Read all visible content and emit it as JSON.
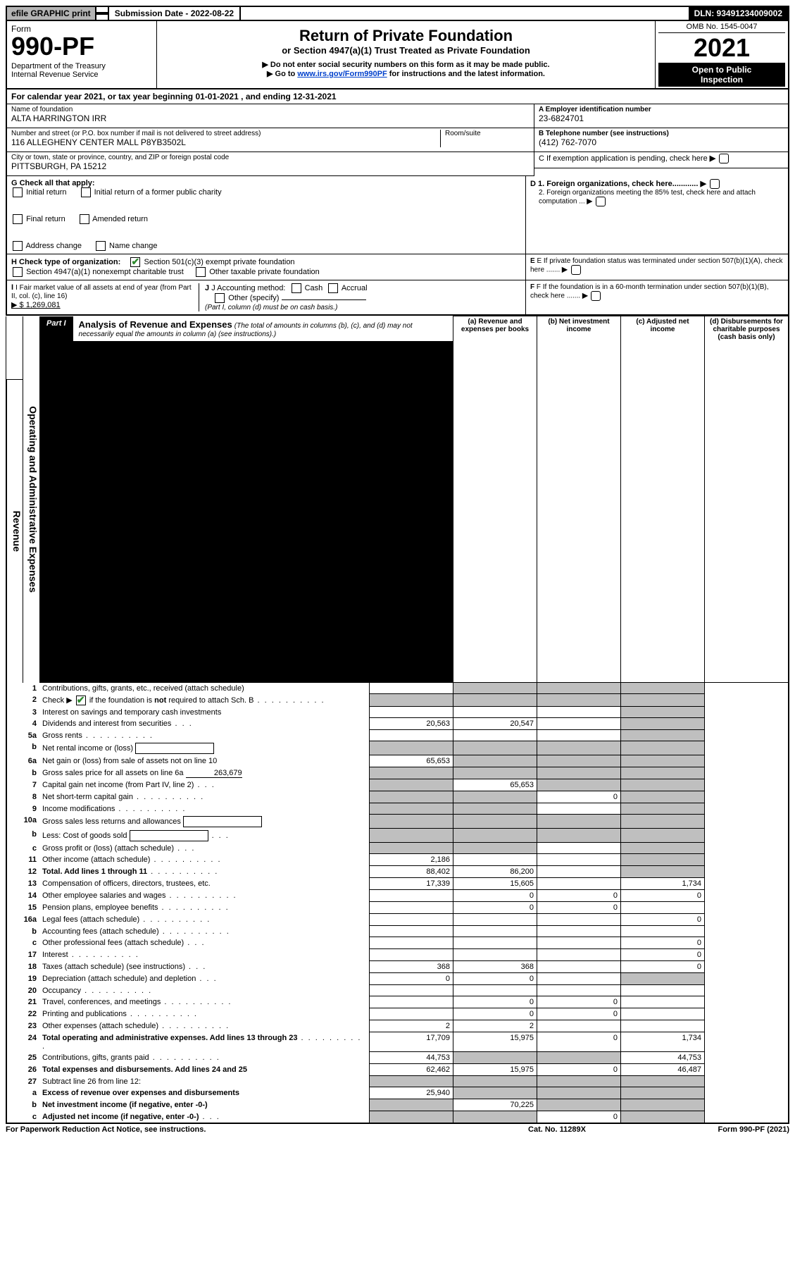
{
  "topbar": {
    "efile": "efile GRAPHIC print",
    "submission_label": "Submission Date - 2022-08-22",
    "dln": "DLN: 93491234009002"
  },
  "header": {
    "form_word": "Form",
    "form_number": "990-PF",
    "dept1": "Department of the Treasury",
    "dept2": "Internal Revenue Service",
    "title": "Return of Private Foundation",
    "subtitle": "or Section 4947(a)(1) Trust Treated as Private Foundation",
    "note1": "▶ Do not enter social security numbers on this form as it may be made public.",
    "note2_prefix": "▶ Go to ",
    "note2_link": "www.irs.gov/Form990PF",
    "note2_suffix": " for instructions and the latest information.",
    "omb": "OMB No. 1545-0047",
    "year": "2021",
    "open1": "Open to Public",
    "open2": "Inspection"
  },
  "calyear": "For calendar year 2021, or tax year beginning 01-01-2021            , and ending 12-31-2021",
  "name_block": {
    "name_lbl": "Name of foundation",
    "name_val": "ALTA HARRINGTON IRR",
    "addr_lbl": "Number and street (or P.O. box number if mail is not delivered to street address)",
    "addr_val": "116 ALLEGHENY CENTER MALL P8YB3502L",
    "room_lbl": "Room/suite",
    "city_lbl": "City or town, state or province, country, and ZIP or foreign postal code",
    "city_val": "PITTSBURGH, PA  15212",
    "a_lbl": "A Employer identification number",
    "a_val": "23-6824701",
    "b_lbl": "B Telephone number (see instructions)",
    "b_val": "(412) 762-7070",
    "c_lbl": "C If exemption application is pending, check here",
    "d1_lbl": "D 1. Foreign organizations, check here............",
    "d2_lbl": "2. Foreign organizations meeting the 85% test, check here and attach computation ...",
    "e_lbl": "E  If private foundation status was terminated under section 507(b)(1)(A), check here .......",
    "f_lbl": "F  If the foundation is in a 60-month termination under section 507(b)(1)(B), check here .......",
    "g_lbl": "G Check all that apply:",
    "g_opts": [
      "Initial return",
      "Final return",
      "Address change",
      "Initial return of a former public charity",
      "Amended return",
      "Name change"
    ],
    "h_lbl": "H Check type of organization:",
    "h1": "Section 501(c)(3) exempt private foundation",
    "h2": "Section 4947(a)(1) nonexempt charitable trust",
    "h3": "Other taxable private foundation",
    "i_lbl": "I Fair market value of all assets at end of year (from Part II, col. (c), line 16)",
    "i_val": "▶ $  1,269,081",
    "j_lbl": "J Accounting method:",
    "j_cash": "Cash",
    "j_accrual": "Accrual",
    "j_other": "Other (specify)",
    "j_note": "(Part I, column (d) must be on cash basis.)"
  },
  "part1": {
    "tag": "Part I",
    "title": "Analysis of Revenue and Expenses",
    "title_note": "(The total of amounts in columns (b), (c), and (d) may not necessarily equal the amounts in column (a) (see instructions).)",
    "col_a": "(a)    Revenue and expenses per books",
    "col_b": "(b)    Net investment income",
    "col_c": "(c)    Adjusted net income",
    "col_d": "(d)    Disbursements for charitable purposes (cash basis only)",
    "side_rev": "Revenue",
    "side_exp": "Operating and Administrative Expenses"
  },
  "rows": [
    {
      "n": "1",
      "desc": "Contributions, gifts, grants, etc., received (attach schedule)",
      "a": "",
      "b": "shade",
      "c": "shade",
      "d": "shade"
    },
    {
      "n": "2",
      "desc": "Check ▶ ☑ if the foundation is not required to attach Sch. B",
      "dots": true,
      "a": "shade",
      "b": "shade",
      "c": "shade",
      "d": "shade",
      "b_not": "",
      "check": true
    },
    {
      "n": "3",
      "desc": "Interest on savings and temporary cash investments",
      "a": "",
      "b": "",
      "c": "",
      "d": "shade"
    },
    {
      "n": "4",
      "desc": "Dividends and interest from securities",
      "dots": "sm",
      "a": "20,563",
      "b": "20,547",
      "c": "",
      "d": "shade"
    },
    {
      "n": "5a",
      "desc": "Gross rents",
      "dots": true,
      "a": "",
      "b": "",
      "c": "",
      "d": "shade"
    },
    {
      "n": "b",
      "desc": "Net rental income or (loss)",
      "inline_box": true,
      "a": "shade",
      "b": "shade",
      "c": "shade",
      "d": "shade"
    },
    {
      "n": "6a",
      "desc": "Net gain or (loss) from sale of assets not on line 10",
      "a": "65,653",
      "b": "shade",
      "c": "shade",
      "d": "shade"
    },
    {
      "n": "b",
      "desc": "Gross sales price for all assets on line 6a",
      "inline_val": "263,679",
      "a": "shade",
      "b": "shade",
      "c": "shade",
      "d": "shade"
    },
    {
      "n": "7",
      "desc": "Capital gain net income (from Part IV, line 2)",
      "dots": "sm",
      "a": "shade",
      "b": "65,653",
      "c": "shade",
      "d": "shade"
    },
    {
      "n": "8",
      "desc": "Net short-term capital gain",
      "dots": true,
      "a": "shade",
      "b": "shade",
      "c": "0",
      "d": "shade"
    },
    {
      "n": "9",
      "desc": "Income modifications",
      "dots": true,
      "a": "shade",
      "b": "shade",
      "c": "",
      "d": "shade"
    },
    {
      "n": "10a",
      "desc": "Gross sales less returns and allowances",
      "inline_box": true,
      "a": "shade",
      "b": "shade",
      "c": "shade",
      "d": "shade"
    },
    {
      "n": "b",
      "desc": "Less: Cost of goods sold",
      "dots": "sm",
      "inline_box": true,
      "a": "shade",
      "b": "shade",
      "c": "shade",
      "d": "shade"
    },
    {
      "n": "c",
      "desc": "Gross profit or (loss) (attach schedule)",
      "dots": "sm",
      "a": "shade",
      "b": "shade",
      "c": "",
      "d": "shade"
    },
    {
      "n": "11",
      "desc": "Other income (attach schedule)",
      "dots": true,
      "a": "2,186",
      "b": "",
      "c": "",
      "d": "shade"
    },
    {
      "n": "12",
      "desc": "Total. Add lines 1 through 11",
      "dots": true,
      "bold": true,
      "a": "88,402",
      "b": "86,200",
      "c": "",
      "d": "shade"
    },
    {
      "n": "13",
      "desc": "Compensation of officers, directors, trustees, etc.",
      "a": "17,339",
      "b": "15,605",
      "c": "",
      "d": "1,734",
      "sec": "exp"
    },
    {
      "n": "14",
      "desc": "Other employee salaries and wages",
      "dots": true,
      "a": "",
      "b": "0",
      "c": "0",
      "d": "0"
    },
    {
      "n": "15",
      "desc": "Pension plans, employee benefits",
      "dots": true,
      "a": "",
      "b": "0",
      "c": "0",
      "d": ""
    },
    {
      "n": "16a",
      "desc": "Legal fees (attach schedule)",
      "dots": true,
      "a": "",
      "b": "",
      "c": "",
      "d": "0"
    },
    {
      "n": "b",
      "desc": "Accounting fees (attach schedule)",
      "dots": true,
      "a": "",
      "b": "",
      "c": "",
      "d": ""
    },
    {
      "n": "c",
      "desc": "Other professional fees (attach schedule)",
      "dots": "sm",
      "a": "",
      "b": "",
      "c": "",
      "d": "0"
    },
    {
      "n": "17",
      "desc": "Interest",
      "dots": true,
      "a": "",
      "b": "",
      "c": "",
      "d": "0"
    },
    {
      "n": "18",
      "desc": "Taxes (attach schedule) (see instructions)",
      "dots": "sm",
      "a": "368",
      "b": "368",
      "c": "",
      "d": "0"
    },
    {
      "n": "19",
      "desc": "Depreciation (attach schedule) and depletion",
      "dots": "sm",
      "a": "0",
      "b": "0",
      "c": "",
      "d": "shade"
    },
    {
      "n": "20",
      "desc": "Occupancy",
      "dots": true,
      "a": "",
      "b": "",
      "c": "",
      "d": ""
    },
    {
      "n": "21",
      "desc": "Travel, conferences, and meetings",
      "dots": true,
      "a": "",
      "b": "0",
      "c": "0",
      "d": ""
    },
    {
      "n": "22",
      "desc": "Printing and publications",
      "dots": true,
      "a": "",
      "b": "0",
      "c": "0",
      "d": ""
    },
    {
      "n": "23",
      "desc": "Other expenses (attach schedule)",
      "dots": true,
      "a": "2",
      "b": "2",
      "c": "",
      "d": ""
    },
    {
      "n": "24",
      "desc": "Total operating and administrative expenses. Add lines 13 through 23",
      "dots": true,
      "bold": true,
      "a": "17,709",
      "b": "15,975",
      "c": "0",
      "d": "1,734"
    },
    {
      "n": "25",
      "desc": "Contributions, gifts, grants paid",
      "dots": true,
      "a": "44,753",
      "b": "shade",
      "c": "shade",
      "d": "44,753"
    },
    {
      "n": "26",
      "desc": "Total expenses and disbursements. Add lines 24 and 25",
      "bold": true,
      "a": "62,462",
      "b": "15,975",
      "c": "0",
      "d": "46,487"
    },
    {
      "n": "27",
      "desc": "Subtract line 26 from line 12:",
      "a": "shade",
      "b": "shade",
      "c": "shade",
      "d": "shade"
    },
    {
      "n": "a",
      "desc": "Excess of revenue over expenses and disbursements",
      "bold": true,
      "a": "25,940",
      "b": "shade",
      "c": "shade",
      "d": "shade"
    },
    {
      "n": "b",
      "desc": "Net investment income (if negative, enter -0-)",
      "bold": true,
      "a": "shade",
      "b": "70,225",
      "c": "shade",
      "d": "shade"
    },
    {
      "n": "c",
      "desc": "Adjusted net income (if negative, enter -0-)",
      "dots": "sm",
      "bold": true,
      "a": "shade",
      "b": "shade",
      "c": "0",
      "d": "shade"
    }
  ],
  "footer": {
    "left": "For Paperwork Reduction Act Notice, see instructions.",
    "mid": "Cat. No. 11289X",
    "right": "Form 990-PF (2021)"
  }
}
